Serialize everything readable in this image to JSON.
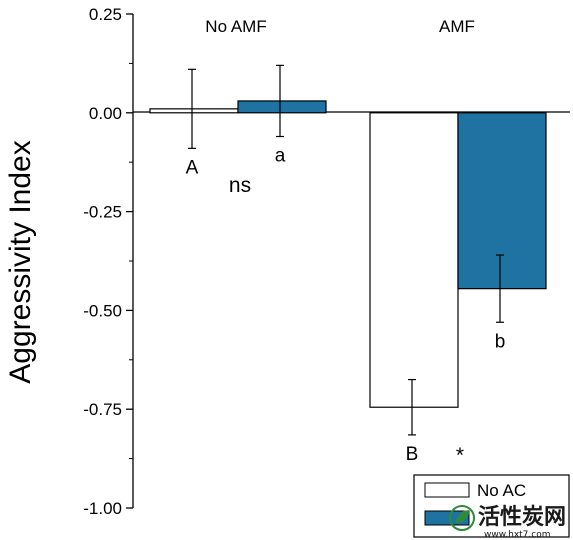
{
  "chart_data": {
    "type": "bar",
    "ylabel": "Aggressivity Index",
    "ylim": [
      -1.0,
      0.25
    ],
    "yticks": [
      0.25,
      0.0,
      -0.25,
      -0.5,
      -0.75,
      -1.0
    ],
    "ytick_labels": [
      "0.25",
      "0.00",
      "-0.25",
      "-0.50",
      "-0.75",
      "-1.00"
    ],
    "groups": [
      "No AMF",
      "AMF"
    ],
    "series": [
      {
        "name": "No AC",
        "color": "#ffffff",
        "values": [
          0.01,
          -0.745
        ],
        "errors": [
          0.1,
          0.07
        ],
        "letters": [
          "A",
          "B"
        ]
      },
      {
        "color": "#1f73a3",
        "values": [
          0.03,
          -0.445
        ],
        "errors": [
          0.09,
          0.085
        ],
        "letters": [
          "a",
          "b"
        ]
      }
    ],
    "significance": [
      "ns",
      "*"
    ],
    "legend_position": "bottom-right",
    "grid": false
  },
  "watermark": {
    "text": "活性炭网",
    "url": "www.hxt7.com"
  }
}
